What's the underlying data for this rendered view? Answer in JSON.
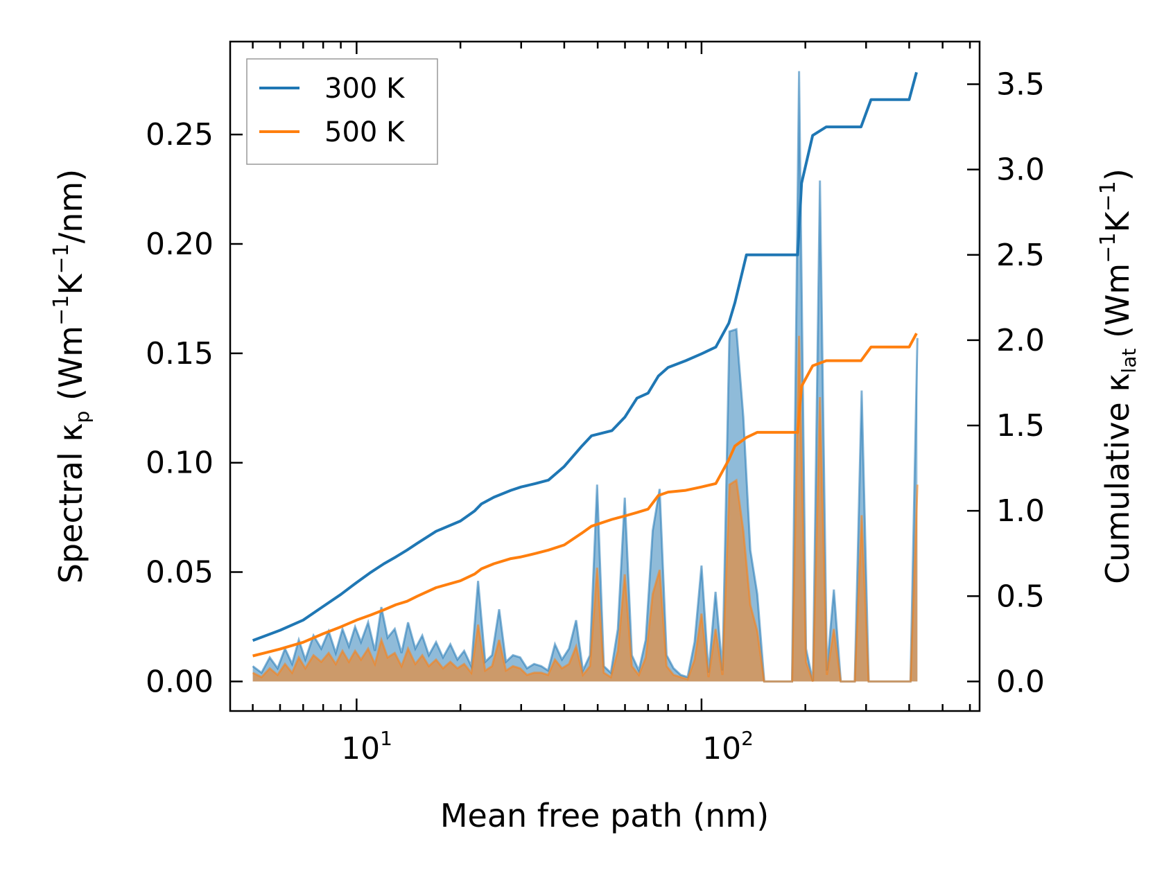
{
  "chart_data": {
    "type": "line",
    "xlabel": "Mean free path (nm)",
    "ylabel_left": {
      "prefix": "Spectral κ",
      "sub": "p",
      "mid1": " (Wm",
      "sup1": "−1",
      "mid2": "K",
      "sup2": "−1",
      "suffix": "/nm)"
    },
    "ylabel_right": {
      "prefix": "Cumulative κ",
      "sub": "lat",
      "mid1": " (Wm",
      "sup1": "−1",
      "mid2": "K",
      "sup2": "−1",
      "suffix": ")"
    },
    "xscale": "log",
    "xlim": [
      4.3,
      640
    ],
    "ylim_left": [
      -0.0135,
      0.2925
    ],
    "ylim_right": [
      -0.173,
      3.75
    ],
    "x_tick_labels": [
      {
        "base": "10",
        "exp": "1",
        "value": 10
      },
      {
        "base": "10",
        "exp": "2",
        "value": 100
      }
    ],
    "y_left_ticks": [
      {
        "value": 0.0,
        "label": "0.00"
      },
      {
        "value": 0.05,
        "label": "0.05"
      },
      {
        "value": 0.1,
        "label": "0.10"
      },
      {
        "value": 0.15,
        "label": "0.15"
      },
      {
        "value": 0.2,
        "label": "0.20"
      },
      {
        "value": 0.25,
        "label": "0.25"
      }
    ],
    "y_right_ticks": [
      {
        "value": 0.0,
        "label": "0.0"
      },
      {
        "value": 0.5,
        "label": "0.5"
      },
      {
        "value": 1.0,
        "label": "1.0"
      },
      {
        "value": 1.5,
        "label": "1.5"
      },
      {
        "value": 2.0,
        "label": "2.0"
      },
      {
        "value": 2.5,
        "label": "2.5"
      },
      {
        "value": 3.0,
        "label": "3.0"
      },
      {
        "value": 3.5,
        "label": "3.5"
      }
    ],
    "legend": {
      "placement": "top-left",
      "entries": [
        {
          "name": "300 K",
          "color": "#1f77b4"
        },
        {
          "name": "500 K",
          "color": "#ff7f0e"
        }
      ]
    },
    "series": [
      {
        "name": "300 K",
        "kind": "cumulative",
        "axis": "right",
        "color": "#1f77b4",
        "x": [
          5,
          6,
          7,
          8,
          9,
          10,
          11,
          12,
          13,
          14,
          15,
          17,
          20,
          22,
          23,
          25,
          28,
          30,
          33,
          36,
          40,
          45,
          48,
          55,
          60,
          65,
          70,
          75,
          80,
          90,
          100,
          110,
          120,
          125,
          135,
          145,
          190,
          195,
          210,
          230,
          290,
          310,
          400,
          420
        ],
        "y": [
          0.24,
          0.3,
          0.36,
          0.44,
          0.51,
          0.58,
          0.64,
          0.69,
          0.73,
          0.77,
          0.81,
          0.88,
          0.94,
          1.0,
          1.04,
          1.08,
          1.12,
          1.14,
          1.16,
          1.18,
          1.26,
          1.38,
          1.44,
          1.47,
          1.55,
          1.66,
          1.69,
          1.79,
          1.84,
          1.88,
          1.92,
          1.96,
          2.1,
          2.22,
          2.5,
          2.5,
          2.5,
          2.92,
          3.2,
          3.25,
          3.25,
          3.41,
          3.41,
          3.57
        ]
      },
      {
        "name": "500 K",
        "kind": "cumulative",
        "axis": "right",
        "color": "#ff7f0e",
        "x": [
          5,
          6,
          7,
          8,
          9,
          10,
          11,
          12,
          13,
          14,
          15,
          17,
          20,
          22,
          23,
          25,
          28,
          30,
          33,
          36,
          40,
          45,
          48,
          55,
          60,
          65,
          70,
          75,
          80,
          90,
          100,
          110,
          120,
          125,
          135,
          145,
          190,
          195,
          210,
          230,
          290,
          310,
          400,
          420
        ],
        "y": [
          0.15,
          0.19,
          0.23,
          0.28,
          0.32,
          0.36,
          0.39,
          0.42,
          0.45,
          0.47,
          0.5,
          0.55,
          0.59,
          0.63,
          0.66,
          0.69,
          0.72,
          0.73,
          0.75,
          0.77,
          0.8,
          0.87,
          0.91,
          0.95,
          0.97,
          0.99,
          1.01,
          1.09,
          1.11,
          1.12,
          1.14,
          1.16,
          1.3,
          1.38,
          1.43,
          1.46,
          1.46,
          1.73,
          1.85,
          1.88,
          1.88,
          1.96,
          1.96,
          2.04
        ]
      },
      {
        "name": "300 K spectral",
        "kind": "spectral",
        "axis": "left",
        "color": "#1f77b4",
        "x": [
          5.0,
          5.3,
          5.6,
          5.9,
          6.2,
          6.5,
          6.8,
          7.1,
          7.5,
          7.9,
          8.3,
          8.7,
          9.1,
          9.5,
          9.9,
          10.3,
          10.8,
          11.3,
          11.8,
          12.3,
          12.9,
          13.5,
          14.1,
          14.8,
          15.5,
          16.2,
          17.0,
          17.8,
          18.7,
          19.6,
          20.5,
          21.5,
          22.5,
          23.6,
          24.7,
          25.9,
          27.1,
          28.4,
          29.8,
          31.2,
          32.7,
          34.3,
          35.9,
          37.6,
          39.4,
          41.3,
          43.3,
          45.3,
          47.5,
          49.8,
          52.1,
          54.6,
          57.2,
          59.9,
          62.8,
          65.8,
          68.9,
          72.2,
          75.6,
          79.2,
          83.0,
          87.0,
          91.1,
          95.5,
          100.0,
          104.8,
          109.8,
          115.0,
          120.5,
          126.2,
          132.2,
          138.5,
          145.1,
          152.0,
          159.2,
          166.8,
          174.7,
          183.0,
          191.8,
          200.9,
          210.4,
          220.4,
          230.9,
          241.9,
          253.4,
          265.5,
          278.1,
          291.3,
          305.2,
          319.7,
          334.9,
          350.9,
          367.6,
          385.1,
          403.4,
          422.6
        ],
        "y": [
          0.007,
          0.004,
          0.011,
          0.006,
          0.015,
          0.008,
          0.019,
          0.01,
          0.021,
          0.015,
          0.023,
          0.013,
          0.024,
          0.016,
          0.025,
          0.018,
          0.027,
          0.014,
          0.034,
          0.02,
          0.024,
          0.013,
          0.027,
          0.015,
          0.021,
          0.012,
          0.018,
          0.011,
          0.017,
          0.01,
          0.014,
          0.007,
          0.046,
          0.009,
          0.012,
          0.033,
          0.009,
          0.012,
          0.011,
          0.006,
          0.008,
          0.007,
          0.005,
          0.017,
          0.01,
          0.015,
          0.028,
          0.005,
          0.012,
          0.09,
          0.007,
          0.004,
          0.024,
          0.084,
          0.012,
          0.005,
          0.019,
          0.069,
          0.088,
          0.012,
          0.006,
          0.003,
          0.002,
          0.018,
          0.053,
          0.004,
          0.041,
          0.005,
          0.16,
          0.161,
          0.121,
          0.06,
          0.04,
          0.0,
          0.0,
          0.0,
          0.0,
          0.0,
          0.279,
          0.015,
          0.0,
          0.229,
          0.005,
          0.042,
          0.0,
          0.0,
          0.0,
          0.133,
          0.0,
          0.0,
          0.0,
          0.0,
          0.0,
          0.0,
          0.0,
          0.157
        ]
      },
      {
        "name": "500 K spectral",
        "kind": "spectral",
        "axis": "left",
        "color": "#ff7f0e",
        "x": [
          5.0,
          5.3,
          5.6,
          5.9,
          6.2,
          6.5,
          6.8,
          7.1,
          7.5,
          7.9,
          8.3,
          8.7,
          9.1,
          9.5,
          9.9,
          10.3,
          10.8,
          11.3,
          11.8,
          12.3,
          12.9,
          13.5,
          14.1,
          14.8,
          15.5,
          16.2,
          17.0,
          17.8,
          18.7,
          19.6,
          20.5,
          21.5,
          22.5,
          23.6,
          24.7,
          25.9,
          27.1,
          28.4,
          29.8,
          31.2,
          32.7,
          34.3,
          35.9,
          37.6,
          39.4,
          41.3,
          43.3,
          45.3,
          47.5,
          49.8,
          52.1,
          54.6,
          57.2,
          59.9,
          62.8,
          65.8,
          68.9,
          72.2,
          75.6,
          79.2,
          83.0,
          87.0,
          91.1,
          95.5,
          100.0,
          104.8,
          109.8,
          115.0,
          120.5,
          126.2,
          132.2,
          138.5,
          145.1,
          152.0,
          159.2,
          166.8,
          174.7,
          183.0,
          191.8,
          200.9,
          210.4,
          220.4,
          230.9,
          241.9,
          253.4,
          265.5,
          278.1,
          291.3,
          305.2,
          319.7,
          334.9,
          350.9,
          367.6,
          385.1,
          403.4,
          422.6
        ],
        "y": [
          0.004,
          0.002,
          0.006,
          0.003,
          0.008,
          0.004,
          0.011,
          0.006,
          0.012,
          0.009,
          0.013,
          0.008,
          0.014,
          0.009,
          0.014,
          0.01,
          0.015,
          0.008,
          0.019,
          0.011,
          0.013,
          0.007,
          0.015,
          0.008,
          0.012,
          0.007,
          0.01,
          0.006,
          0.009,
          0.006,
          0.008,
          0.004,
          0.026,
          0.005,
          0.007,
          0.019,
          0.005,
          0.007,
          0.006,
          0.003,
          0.004,
          0.004,
          0.003,
          0.01,
          0.006,
          0.008,
          0.016,
          0.003,
          0.007,
          0.052,
          0.004,
          0.002,
          0.014,
          0.049,
          0.007,
          0.003,
          0.011,
          0.04,
          0.051,
          0.007,
          0.003,
          0.002,
          0.001,
          0.01,
          0.031,
          0.002,
          0.024,
          0.003,
          0.09,
          0.092,
          0.069,
          0.035,
          0.023,
          0.0,
          0.0,
          0.0,
          0.0,
          0.0,
          0.158,
          0.009,
          0.0,
          0.13,
          0.003,
          0.024,
          0.0,
          0.0,
          0.0,
          0.076,
          0.0,
          0.0,
          0.0,
          0.0,
          0.0,
          0.0,
          0.0,
          0.09
        ]
      }
    ]
  }
}
